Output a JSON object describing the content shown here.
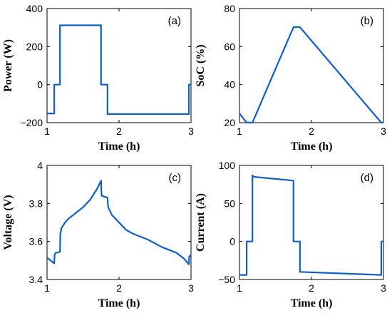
{
  "chart_data": [
    {
      "type": "line",
      "panel_label": "(a)",
      "xlabel": "Time (h)",
      "ylabel": "Power (W)",
      "xlim": [
        1,
        3
      ],
      "ylim": [
        -200,
        400
      ],
      "xticks": [
        1,
        2,
        3
      ],
      "yticks": [
        -200,
        0,
        200,
        400
      ],
      "color": "#0d5fc9",
      "grid": false,
      "series": [
        {
          "x": [
            1.0,
            1.1,
            1.1,
            1.18,
            1.18,
            1.75,
            1.75,
            1.84,
            1.84,
            2.97,
            2.97,
            3.0
          ],
          "y": [
            -152,
            -152,
            0,
            0,
            312,
            312,
            0,
            0,
            -155,
            -155,
            0,
            0
          ]
        }
      ]
    },
    {
      "type": "line",
      "panel_label": "(b)",
      "xlabel": "Time (h)",
      "ylabel": "SoC (%)",
      "xlim": [
        1,
        3
      ],
      "ylim": [
        20,
        80
      ],
      "xticks": [
        1,
        2,
        3
      ],
      "yticks": [
        20,
        40,
        60,
        80
      ],
      "color": "#0d5fc9",
      "grid": false,
      "series": [
        {
          "x": [
            1.0,
            1.1,
            1.18,
            1.75,
            1.84,
            2.97,
            3.0
          ],
          "y": [
            24.8,
            20,
            20,
            70.2,
            70.2,
            20,
            20
          ]
        }
      ]
    },
    {
      "type": "line",
      "panel_label": "(c)",
      "xlabel": "Time (h)",
      "ylabel": "Voltage (V)",
      "xlim": [
        1,
        3
      ],
      "ylim": [
        3.4,
        4
      ],
      "xticks": [
        1,
        2,
        3
      ],
      "yticks": [
        3.4,
        3.6,
        3.8,
        4
      ],
      "color": "#0d5fc9",
      "grid": false,
      "series": [
        {
          "x": [
            1.0,
            1.05,
            1.1,
            1.105,
            1.12,
            1.18,
            1.185,
            1.2,
            1.25,
            1.3,
            1.4,
            1.5,
            1.6,
            1.7,
            1.75,
            1.755,
            1.76,
            1.84,
            1.845,
            1.85,
            1.9,
            2.0,
            2.1,
            2.2,
            2.4,
            2.6,
            2.8,
            2.9,
            2.96,
            2.97,
            2.975,
            3.0
          ],
          "y": [
            3.515,
            3.5,
            3.485,
            3.53,
            3.54,
            3.545,
            3.64,
            3.67,
            3.7,
            3.72,
            3.75,
            3.78,
            3.82,
            3.88,
            3.92,
            3.86,
            3.84,
            3.83,
            3.8,
            3.78,
            3.74,
            3.7,
            3.66,
            3.64,
            3.61,
            3.57,
            3.54,
            3.51,
            3.485,
            3.48,
            3.52,
            3.53
          ]
        }
      ]
    },
    {
      "type": "line",
      "panel_label": "(d)",
      "xlabel": "Time (h)",
      "ylabel": "Current (A)",
      "xlim": [
        1,
        3
      ],
      "ylim": [
        -50,
        100
      ],
      "xticks": [
        1,
        2,
        3
      ],
      "yticks": [
        -50,
        0,
        50,
        100
      ],
      "color": "#0d5fc9",
      "grid": false,
      "series": [
        {
          "x": [
            1.0,
            1.1,
            1.1,
            1.18,
            1.18,
            1.2,
            1.75,
            1.75,
            1.84,
            1.84,
            2.97,
            2.97,
            3.0
          ],
          "y": [
            -44,
            -44,
            0,
            0,
            87,
            85,
            80,
            0,
            0,
            -40,
            -44,
            0,
            0
          ]
        }
      ]
    }
  ]
}
